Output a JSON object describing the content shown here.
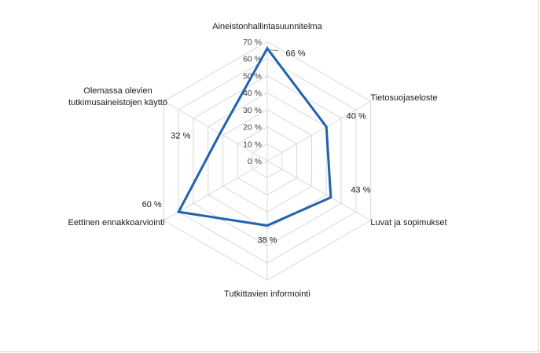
{
  "chart_data": {
    "type": "radar",
    "title": "",
    "categories": [
      "Aineistonhallintasuunnitelma",
      "Tietosuojaseloste",
      "Luvat ja sopimukset",
      "Tutkittavien informointi",
      "Eettinen ennakkoarviointi",
      "Olemassa olevien tutkimusaineistojen käyttö"
    ],
    "series": [
      {
        "values": [
          66,
          40,
          43,
          38,
          60,
          32
        ],
        "color": "#1f63b0"
      }
    ],
    "data_labels": [
      "66 %",
      "40 %",
      "43 %",
      "38 %",
      "60 %",
      "32 %"
    ],
    "ylim": [
      0,
      70
    ],
    "ticks": [
      0,
      10,
      20,
      30,
      40,
      50,
      60,
      70
    ],
    "tick_labels": [
      "0 %",
      "10 %",
      "20 %",
      "30 %",
      "40 %",
      "50 %",
      "60 %",
      "70 %"
    ],
    "grid": true,
    "legend": "none"
  }
}
